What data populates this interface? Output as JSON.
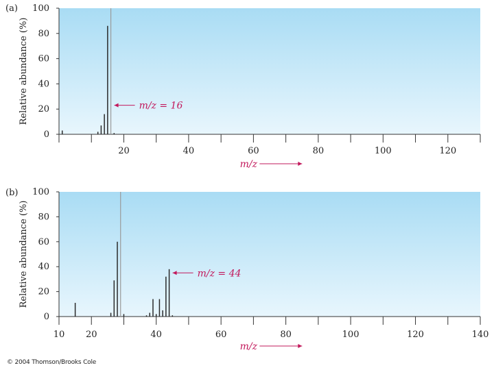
{
  "chart_data": [
    {
      "type": "bar",
      "panel_label": "(a)",
      "ylabel": "Relative abundance (%)",
      "xlabel": "m/z",
      "xlim": [
        0,
        130
      ],
      "ylim": [
        0,
        100
      ],
      "xticks": [
        "20",
        "40",
        "60",
        "80",
        "100",
        "120"
      ],
      "yticks": [
        "0",
        "20",
        "40",
        "60",
        "80",
        "100"
      ],
      "background_colors": [
        "#a9dcf4",
        "#e8f6fd"
      ],
      "series": [
        {
          "x": [
            1,
            12,
            13,
            14,
            15,
            16,
            17
          ],
          "values": [
            3,
            2,
            7,
            16,
            86,
            100,
            1
          ]
        }
      ],
      "annotation": {
        "text": "m/z = 16",
        "x": 16,
        "y": 23
      }
    },
    {
      "type": "bar",
      "panel_label": "(b)",
      "ylabel": "Relative abundance (%)",
      "xlabel": "m/z",
      "xlim": [
        10,
        140
      ],
      "ylim": [
        0,
        100
      ],
      "xticks": [
        "10",
        "20",
        "40",
        "60",
        "80",
        "100",
        "120",
        "140"
      ],
      "yticks": [
        "0",
        "20",
        "40",
        "60",
        "80",
        "100"
      ],
      "background_colors": [
        "#a9dcf4",
        "#e8f6fd"
      ],
      "series": [
        {
          "x": [
            15,
            26,
            27,
            28,
            29,
            30,
            37,
            38,
            39,
            40,
            41,
            42,
            43,
            44,
            45
          ],
          "values": [
            11,
            3,
            29,
            60,
            100,
            2,
            1,
            3,
            14,
            2,
            14,
            5,
            32,
            38,
            1
          ]
        }
      ],
      "annotation": {
        "text": "m/z = 44",
        "x": 44,
        "y": 35
      }
    }
  ],
  "copyright": "© 2004 Thomson/Brooks Cole",
  "colors": {
    "bar": "#2a2a2a",
    "accent": "#c2185b",
    "axis": "#333333"
  }
}
